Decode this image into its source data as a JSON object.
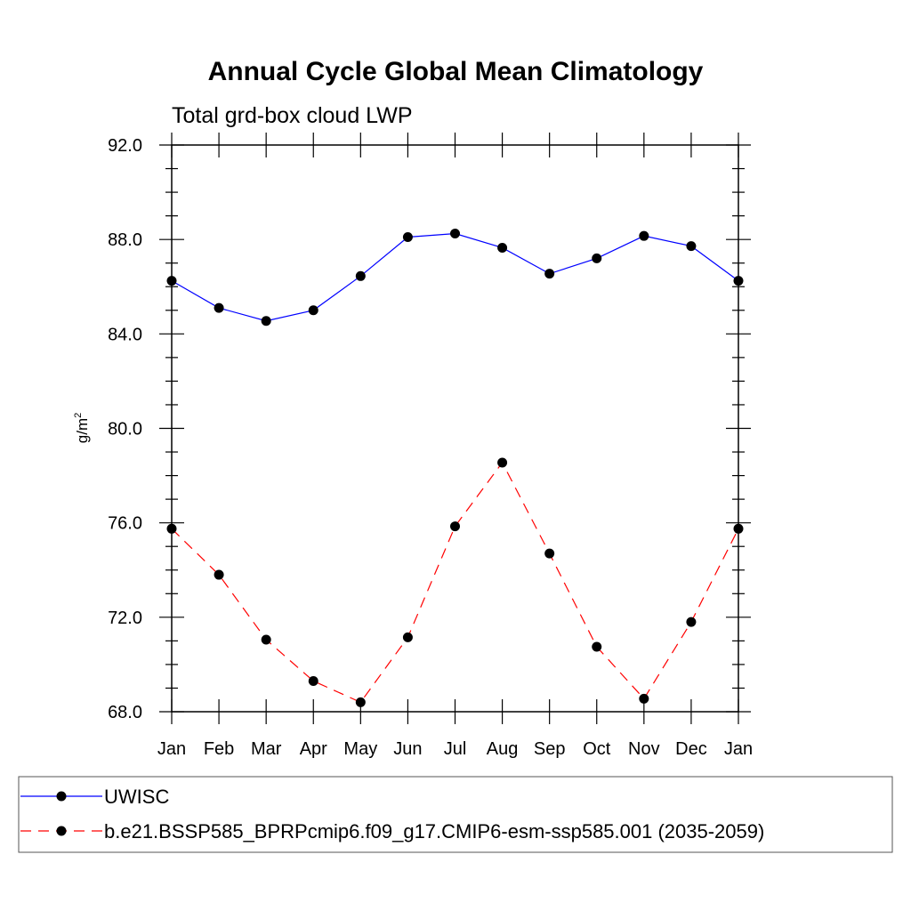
{
  "chart_data": {
    "type": "line",
    "title": "Annual Cycle Global Mean Climatology",
    "subtitle": "Total grd-box cloud LWP",
    "ylabel": "g/m",
    "ylabel_sup": "2",
    "xlabel": "",
    "categories": [
      "Jan",
      "Feb",
      "Mar",
      "Apr",
      "May",
      "Jun",
      "Jul",
      "Aug",
      "Sep",
      "Oct",
      "Nov",
      "Dec",
      "Jan"
    ],
    "ylim": [
      68.0,
      92.0
    ],
    "yticks": [
      "68.0",
      "72.0",
      "76.0",
      "80.0",
      "84.0",
      "88.0",
      "92.0"
    ],
    "grid": false,
    "legend_position": "bottom",
    "series": [
      {
        "name": "UWISC",
        "color": "#0000ff",
        "style": "solid",
        "marker": "circle",
        "values": [
          86.25,
          85.1,
          84.55,
          85.0,
          86.45,
          88.1,
          88.25,
          87.65,
          86.55,
          87.2,
          88.15,
          87.72,
          86.25
        ]
      },
      {
        "name": "b.e21.BSSP585_BPRPcmip6.f09_g17.CMIP6-esm-ssp585.001 (2035-2059)",
        "color": "#ff0000",
        "style": "dashed",
        "marker": "circle",
        "values": [
          75.75,
          73.8,
          71.05,
          69.3,
          68.4,
          71.15,
          75.85,
          78.55,
          74.7,
          70.75,
          68.55,
          71.8,
          75.75
        ]
      }
    ]
  }
}
